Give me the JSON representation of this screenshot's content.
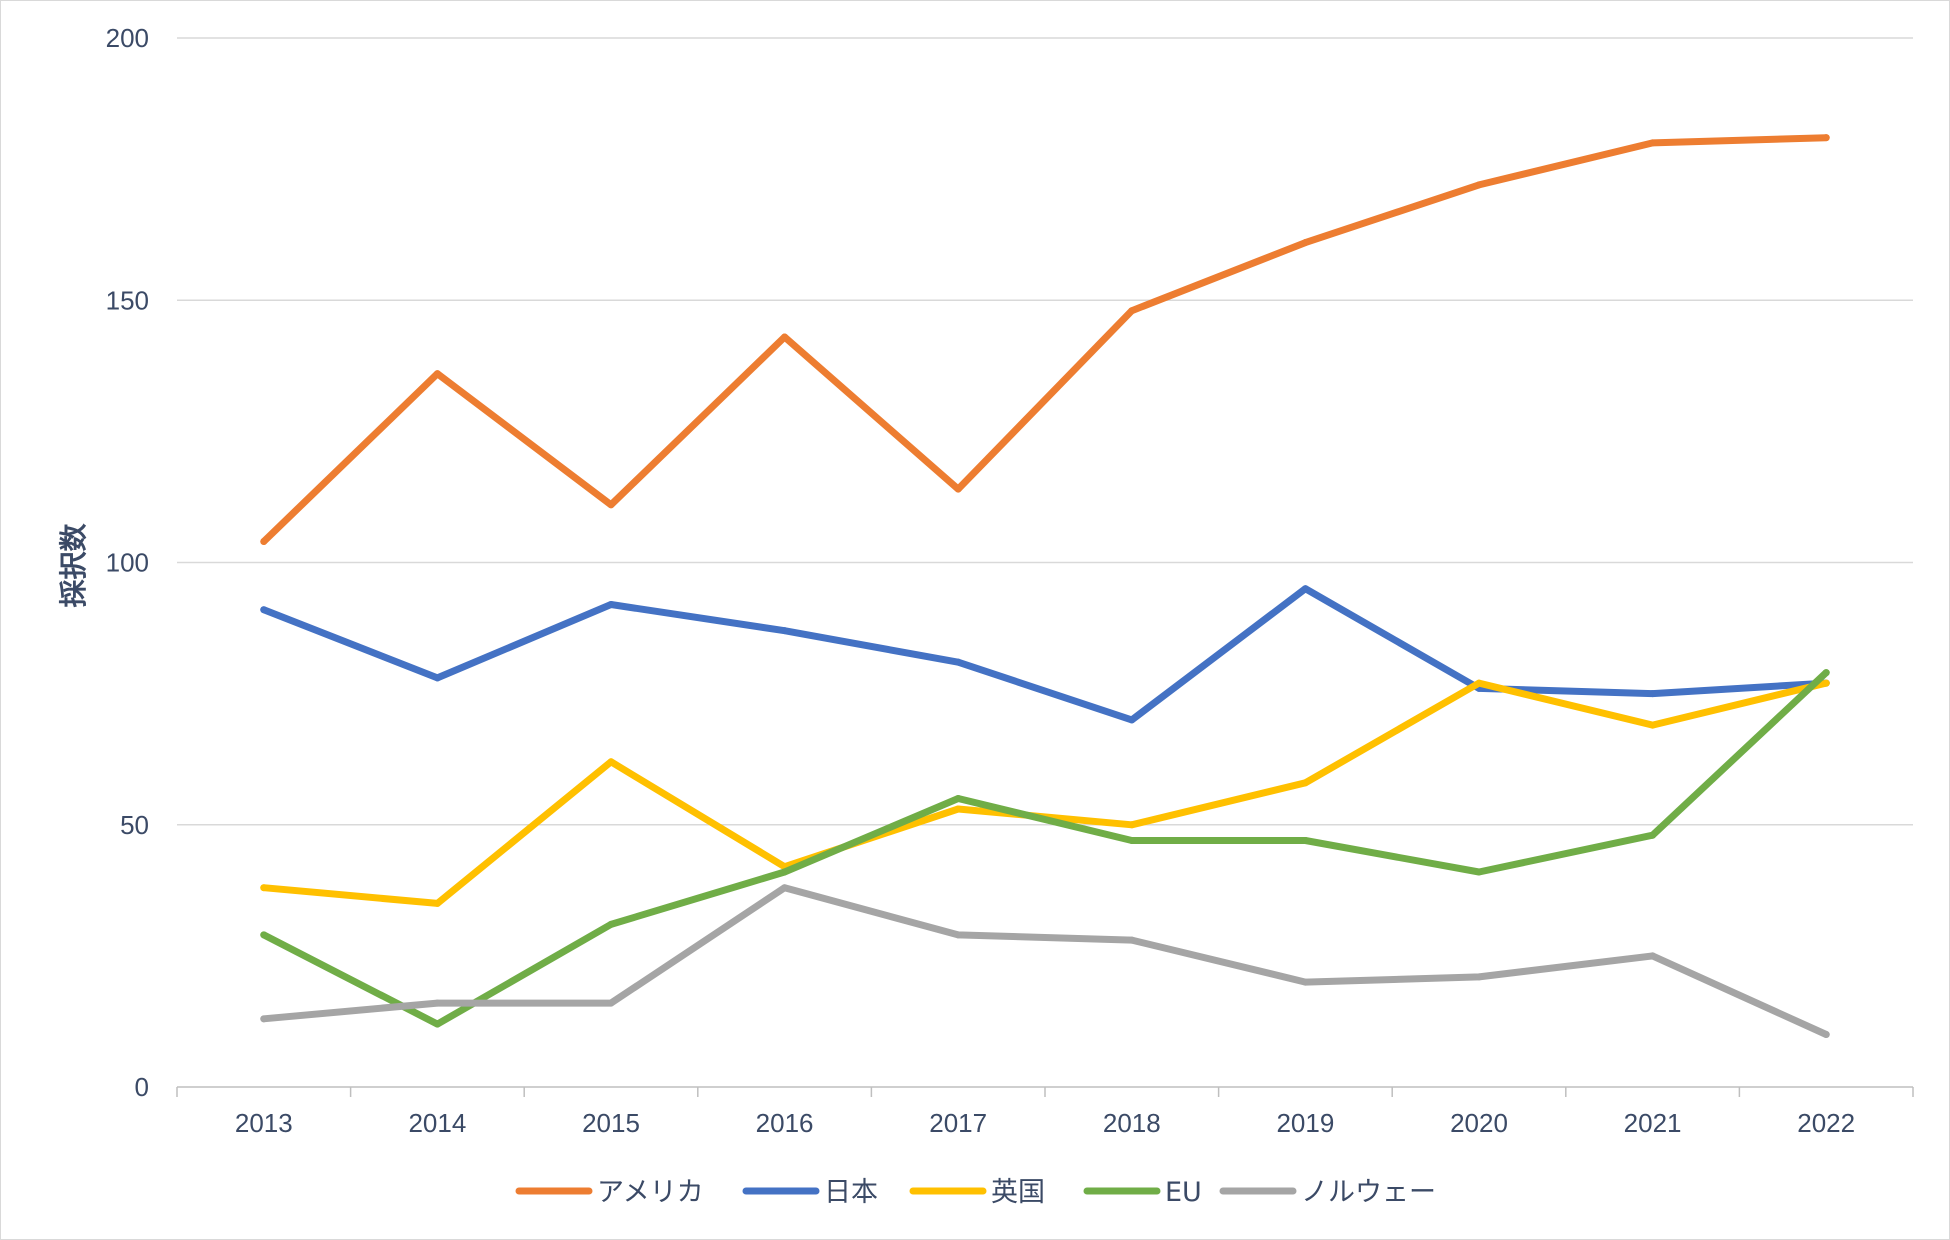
{
  "chart_data": {
    "type": "line",
    "title": "",
    "xlabel": "",
    "ylabel": "採択数",
    "categories": [
      "2013",
      "2014",
      "2015",
      "2016",
      "2017",
      "2018",
      "2019",
      "2020",
      "2021",
      "2022"
    ],
    "ylim": [
      0,
      200
    ],
    "yticks": [
      0,
      50,
      100,
      150,
      200
    ],
    "grid": true,
    "legend_position": "bottom",
    "series": [
      {
        "name": "アメリカ",
        "color": "#ED7D31",
        "values": [
          104,
          136,
          111,
          143,
          114,
          148,
          161,
          172,
          180,
          181
        ]
      },
      {
        "name": "日本",
        "color": "#4472C4",
        "values": [
          91,
          78,
          92,
          87,
          81,
          70,
          95,
          76,
          75,
          77
        ]
      },
      {
        "name": "英国",
        "color": "#FFC000",
        "values": [
          38,
          35,
          62,
          42,
          53,
          50,
          58,
          77,
          69,
          77
        ]
      },
      {
        "name": "EU",
        "color": "#70AD47",
        "values": [
          29,
          12,
          31,
          41,
          55,
          47,
          47,
          41,
          48,
          79
        ]
      },
      {
        "name": "ノルウェー",
        "color": "#A5A5A5",
        "values": [
          13,
          16,
          16,
          38,
          29,
          28,
          20,
          21,
          25,
          10
        ]
      }
    ]
  }
}
